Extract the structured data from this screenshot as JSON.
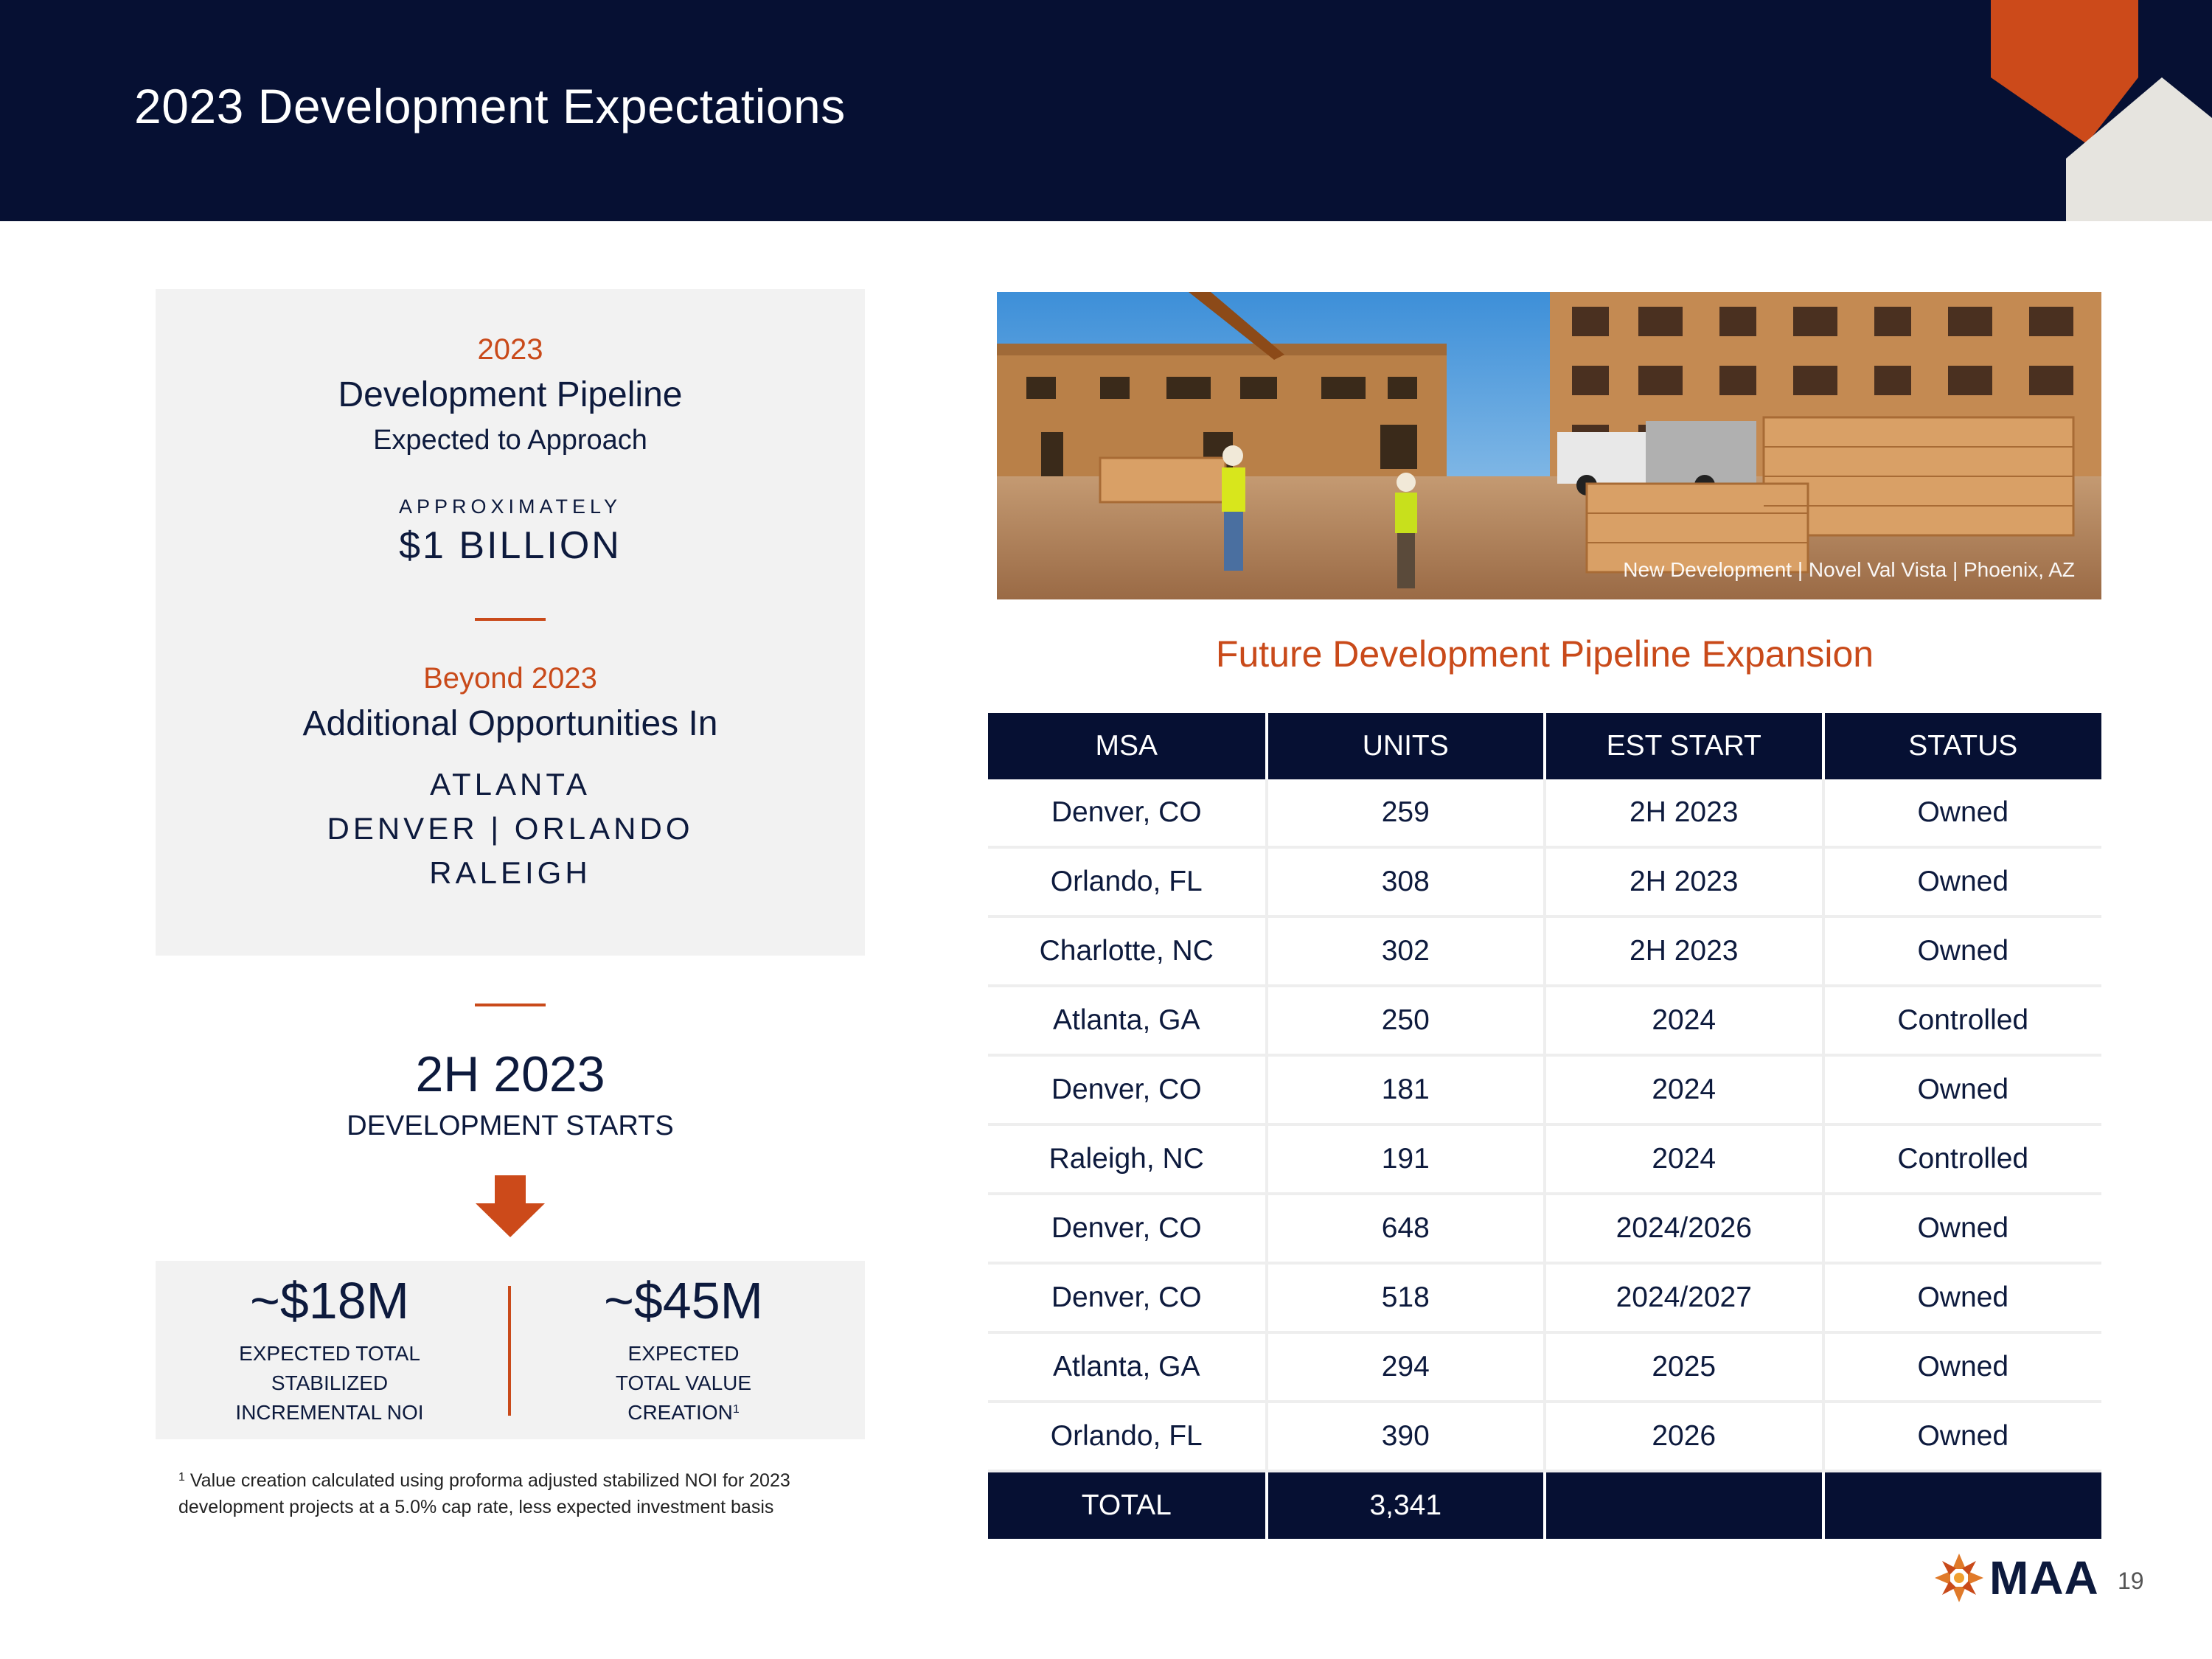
{
  "header": {
    "title": "2023 Development Expectations"
  },
  "pipeline_box": {
    "year": "2023",
    "heading": "Development Pipeline",
    "subheading": "Expected to Approach",
    "approx_label": "APPROXIMATELY",
    "amount": "$1 BILLION",
    "beyond_label": "Beyond 2023",
    "beyond_heading": "Additional Opportunities In",
    "markets_line1": "ATLANTA",
    "markets_line2": "DENVER | ORLANDO",
    "markets_line3": "RALEIGH"
  },
  "starts": {
    "period": "2H 2023",
    "label": "DEVELOPMENT STARTS"
  },
  "metrics": [
    {
      "value": "~$18M",
      "line1": "EXPECTED TOTAL",
      "line2": "STABILIZED",
      "line3": "INCREMENTAL NOI",
      "sup": ""
    },
    {
      "value": "~$45M",
      "line1": "EXPECTED",
      "line2": "TOTAL VALUE",
      "line3": "CREATION",
      "sup": "1"
    }
  ],
  "footnote": {
    "marker": "1",
    "text": "Value creation calculated using proforma adjusted stabilized NOI for 2023 development projects at a 5.0% cap rate, less expected investment basis"
  },
  "photo": {
    "caption": "New Development | Novel Val Vista | Phoenix, AZ"
  },
  "table": {
    "title": "Future Development Pipeline Expansion",
    "headers": [
      "MSA",
      "UNITS",
      "EST START",
      "STATUS"
    ],
    "rows": [
      [
        "Denver, CO",
        "259",
        "2H 2023",
        "Owned"
      ],
      [
        "Orlando, FL",
        "308",
        "2H 2023",
        "Owned"
      ],
      [
        "Charlotte, NC",
        "302",
        "2H 2023",
        "Owned"
      ],
      [
        "Atlanta, GA",
        "250",
        "2024",
        "Controlled"
      ],
      [
        "Denver, CO",
        "181",
        "2024",
        "Owned"
      ],
      [
        "Raleigh, NC",
        "191",
        "2024",
        "Controlled"
      ],
      [
        "Denver, CO",
        "648",
        "2024/2026",
        "Owned"
      ],
      [
        "Denver, CO",
        "518",
        "2024/2027",
        "Owned"
      ],
      [
        "Atlanta, GA",
        "294",
        "2025",
        "Owned"
      ],
      [
        "Orlando, FL",
        "390",
        "2026",
        "Owned"
      ]
    ],
    "total": [
      "TOTAL",
      "3,341",
      "",
      ""
    ]
  },
  "logo": {
    "text": "MAA"
  },
  "page_number": "19",
  "colors": {
    "navy": "#061033",
    "accent": "#c94a1a",
    "panel": "#f2f2f2"
  }
}
